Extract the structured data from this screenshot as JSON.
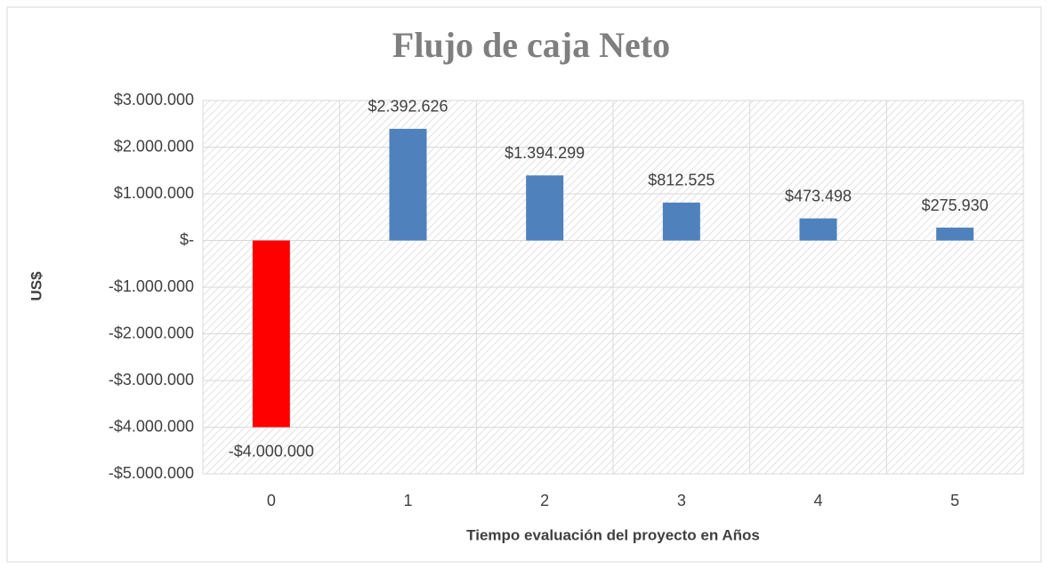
{
  "chart_data": {
    "type": "bar",
    "title": "Flujo de caja Neto",
    "x_label": "Tiempo evaluación del proyecto en Años",
    "y_label": "US$",
    "categories": [
      "0",
      "1",
      "2",
      "3",
      "4",
      "5"
    ],
    "values": [
      -4000000,
      2392626,
      1394299,
      812525,
      473498,
      275930
    ],
    "value_labels": [
      "-$4.000.000",
      "$2.392.626",
      "$1.394.299",
      "$812.525",
      "$473.498",
      "$275.930"
    ],
    "colors": [
      "#ff0000",
      "#4f81bd",
      "#4f81bd",
      "#4f81bd",
      "#4f81bd",
      "#4f81bd"
    ],
    "ylim": [
      -5000000,
      3000000
    ],
    "yticks": [
      {
        "value": -5000000,
        "label": "-$5.000.000"
      },
      {
        "value": -4000000,
        "label": "-$4.000.000"
      },
      {
        "value": -3000000,
        "label": "-$3.000.000"
      },
      {
        "value": -2000000,
        "label": "-$2.000.000"
      },
      {
        "value": -1000000,
        "label": "-$1.000.000"
      },
      {
        "value": 0,
        "label": "$-"
      },
      {
        "value": 1000000,
        "label": "$1.000.000"
      },
      {
        "value": 2000000,
        "label": "$2.000.000"
      },
      {
        "value": 3000000,
        "label": "$3.000.000"
      }
    ],
    "grid": true
  }
}
